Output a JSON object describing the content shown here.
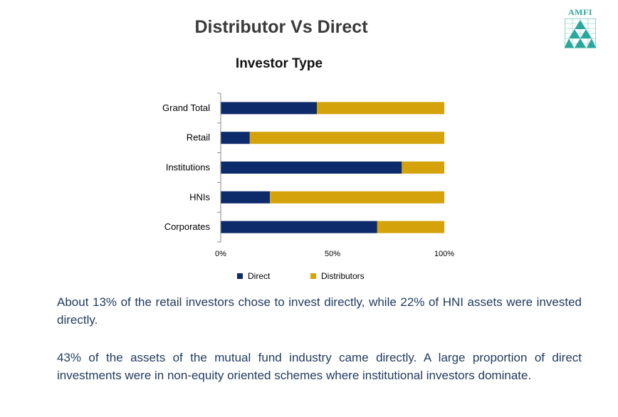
{
  "page": {
    "title": "Distributor Vs Direct",
    "logo_text": "AMFI"
  },
  "colors": {
    "direct": "#0d2a6b",
    "distributors": "#d4a20a",
    "logo": "#2aa79b"
  },
  "chart_data": {
    "type": "bar",
    "orientation": "horizontal",
    "stacked": "percent",
    "title": "Investor  Type",
    "categories": [
      "Grand Total",
      "Retail",
      "Institutions",
      "HNIs",
      "Corporates"
    ],
    "series": [
      {
        "name": "Direct",
        "values": [
          43,
          13,
          81,
          22,
          70
        ]
      },
      {
        "name": "Distributors",
        "values": [
          57,
          87,
          19,
          78,
          30
        ]
      }
    ],
    "xlim": [
      0,
      100
    ],
    "xticks": [
      "0%",
      "50%",
      "100%"
    ],
    "grid": false,
    "legend_position": "bottom"
  },
  "body": {
    "paragraph1": "About 13% of the retail investors chose to invest directly, while 22% of HNI assets were invested directly.",
    "paragraph2": "43% of the assets of the mutual fund industry came directly. A large proportion of direct investments were in non-equity oriented schemes where institutional investors dominate."
  }
}
